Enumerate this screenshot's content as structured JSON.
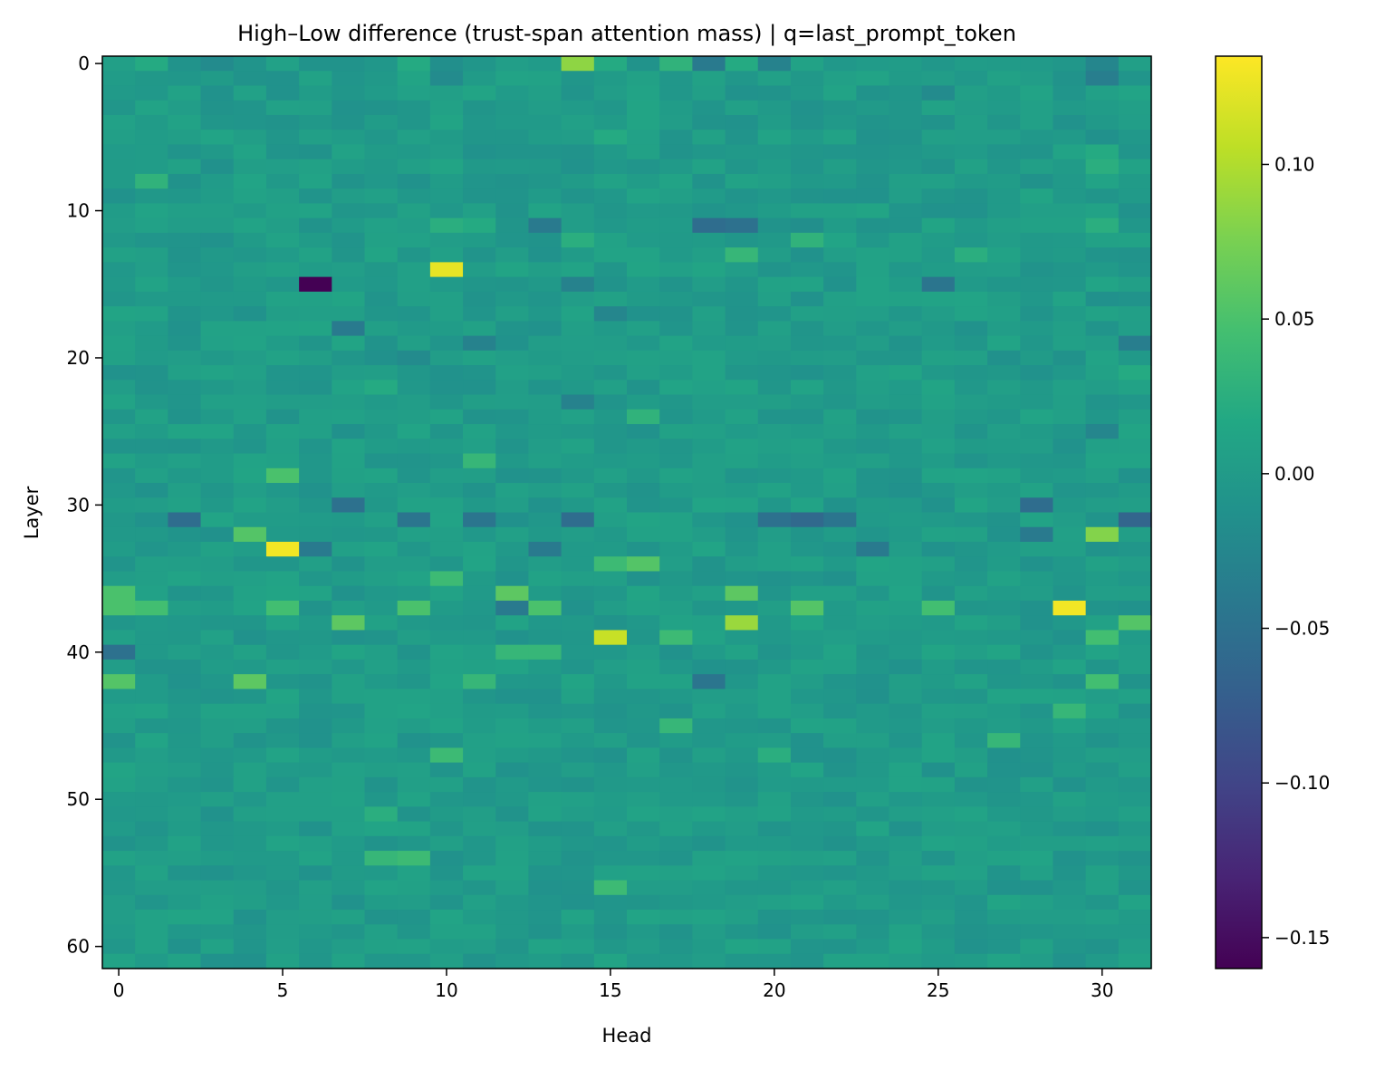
{
  "chart_data": {
    "type": "heatmap",
    "title": "High–Low difference (trust-span attention mass) | q=last_prompt_token",
    "xlabel": "Head",
    "ylabel": "Layer",
    "x_ticks": [
      0,
      5,
      10,
      15,
      20,
      25,
      30
    ],
    "y_ticks": [
      0,
      10,
      20,
      30,
      40,
      50,
      60
    ],
    "x_tick_labels": [
      "0",
      "5",
      "10",
      "15",
      "20",
      "25",
      "30"
    ],
    "y_tick_labels": [
      "0",
      "10",
      "20",
      "30",
      "40",
      "50",
      "60"
    ],
    "n_heads": 32,
    "n_layers": 62,
    "colormap": "viridis",
    "vmin": -0.16,
    "vmax": 0.135,
    "colorbar_ticks": [
      0.1,
      0.05,
      0.0,
      -0.05,
      -0.1,
      -0.15
    ],
    "colorbar_tick_labels": [
      "0.10",
      "0.05",
      "0.00",
      "−0.05",
      "−0.10",
      "−0.15"
    ],
    "baseline_value": 0.0,
    "cells": [
      {
        "layer": 0,
        "head": 1,
        "value": 0.02
      },
      {
        "layer": 0,
        "head": 2,
        "value": -0.01
      },
      {
        "layer": 0,
        "head": 3,
        "value": -0.02
      },
      {
        "layer": 0,
        "head": 7,
        "value": -0.01
      },
      {
        "layer": 0,
        "head": 9,
        "value": 0.02
      },
      {
        "layer": 0,
        "head": 10,
        "value": -0.015
      },
      {
        "layer": 0,
        "head": 14,
        "value": 0.085
      },
      {
        "layer": 0,
        "head": 15,
        "value": 0.02
      },
      {
        "layer": 0,
        "head": 16,
        "value": -0.01
      },
      {
        "layer": 0,
        "head": 17,
        "value": 0.03
      },
      {
        "layer": 0,
        "head": 18,
        "value": -0.04
      },
      {
        "layer": 0,
        "head": 19,
        "value": 0.02
      },
      {
        "layer": 0,
        "head": 20,
        "value": -0.03
      },
      {
        "layer": 0,
        "head": 30,
        "value": -0.025
      },
      {
        "layer": 1,
        "head": 30,
        "value": -0.035
      },
      {
        "layer": 1,
        "head": 10,
        "value": -0.02
      },
      {
        "layer": 2,
        "head": 25,
        "value": -0.02
      },
      {
        "layer": 5,
        "head": 15,
        "value": 0.02
      },
      {
        "layer": 6,
        "head": 30,
        "value": 0.02
      },
      {
        "layer": 7,
        "head": 30,
        "value": 0.025
      },
      {
        "layer": 8,
        "head": 1,
        "value": 0.03
      },
      {
        "layer": 11,
        "head": 10,
        "value": 0.025
      },
      {
        "layer": 11,
        "head": 11,
        "value": 0.02
      },
      {
        "layer": 11,
        "head": 13,
        "value": -0.04
      },
      {
        "layer": 11,
        "head": 18,
        "value": -0.055
      },
      {
        "layer": 11,
        "head": 19,
        "value": -0.05
      },
      {
        "layer": 11,
        "head": 21,
        "value": -0.015
      },
      {
        "layer": 11,
        "head": 30,
        "value": 0.025
      },
      {
        "layer": 12,
        "head": 21,
        "value": 0.03
      },
      {
        "layer": 12,
        "head": 14,
        "value": 0.025
      },
      {
        "layer": 13,
        "head": 19,
        "value": 0.035
      },
      {
        "layer": 13,
        "head": 26,
        "value": 0.025
      },
      {
        "layer": 14,
        "head": 10,
        "value": 0.125
      },
      {
        "layer": 15,
        "head": 6,
        "value": -0.16
      },
      {
        "layer": 15,
        "head": 25,
        "value": -0.045
      },
      {
        "layer": 15,
        "head": 14,
        "value": -0.03
      },
      {
        "layer": 17,
        "head": 15,
        "value": -0.025
      },
      {
        "layer": 18,
        "head": 7,
        "value": -0.04
      },
      {
        "layer": 19,
        "head": 11,
        "value": -0.03
      },
      {
        "layer": 19,
        "head": 31,
        "value": -0.035
      },
      {
        "layer": 20,
        "head": 9,
        "value": -0.02
      },
      {
        "layer": 21,
        "head": 31,
        "value": 0.02
      },
      {
        "layer": 22,
        "head": 8,
        "value": 0.02
      },
      {
        "layer": 23,
        "head": 14,
        "value": -0.03
      },
      {
        "layer": 24,
        "head": 16,
        "value": 0.03
      },
      {
        "layer": 25,
        "head": 30,
        "value": -0.025
      },
      {
        "layer": 27,
        "head": 11,
        "value": 0.035
      },
      {
        "layer": 28,
        "head": 5,
        "value": 0.05
      },
      {
        "layer": 30,
        "head": 7,
        "value": -0.05
      },
      {
        "layer": 30,
        "head": 28,
        "value": -0.055
      },
      {
        "layer": 31,
        "head": 2,
        "value": -0.055
      },
      {
        "layer": 31,
        "head": 9,
        "value": -0.045
      },
      {
        "layer": 31,
        "head": 11,
        "value": -0.045
      },
      {
        "layer": 31,
        "head": 14,
        "value": -0.055
      },
      {
        "layer": 31,
        "head": 20,
        "value": -0.05
      },
      {
        "layer": 31,
        "head": 21,
        "value": -0.06
      },
      {
        "layer": 31,
        "head": 22,
        "value": -0.045
      },
      {
        "layer": 31,
        "head": 31,
        "value": -0.065
      },
      {
        "layer": 32,
        "head": 4,
        "value": 0.055
      },
      {
        "layer": 32,
        "head": 30,
        "value": 0.08
      },
      {
        "layer": 32,
        "head": 28,
        "value": -0.04
      },
      {
        "layer": 33,
        "head": 5,
        "value": 0.13
      },
      {
        "layer": 33,
        "head": 6,
        "value": -0.04
      },
      {
        "layer": 33,
        "head": 13,
        "value": -0.04
      },
      {
        "layer": 33,
        "head": 23,
        "value": -0.04
      },
      {
        "layer": 34,
        "head": 15,
        "value": 0.04
      },
      {
        "layer": 34,
        "head": 16,
        "value": 0.055
      },
      {
        "layer": 35,
        "head": 10,
        "value": 0.04
      },
      {
        "layer": 36,
        "head": 0,
        "value": 0.05
      },
      {
        "layer": 36,
        "head": 12,
        "value": 0.06
      },
      {
        "layer": 36,
        "head": 19,
        "value": 0.06
      },
      {
        "layer": 37,
        "head": 0,
        "value": 0.05
      },
      {
        "layer": 37,
        "head": 1,
        "value": 0.045
      },
      {
        "layer": 37,
        "head": 5,
        "value": 0.045
      },
      {
        "layer": 37,
        "head": 9,
        "value": 0.05
      },
      {
        "layer": 37,
        "head": 12,
        "value": -0.04
      },
      {
        "layer": 37,
        "head": 13,
        "value": 0.05
      },
      {
        "layer": 37,
        "head": 21,
        "value": 0.055
      },
      {
        "layer": 37,
        "head": 29,
        "value": 0.13
      },
      {
        "layer": 37,
        "head": 25,
        "value": 0.045
      },
      {
        "layer": 38,
        "head": 7,
        "value": 0.06
      },
      {
        "layer": 38,
        "head": 19,
        "value": 0.09
      },
      {
        "layer": 38,
        "head": 31,
        "value": 0.055
      },
      {
        "layer": 39,
        "head": 15,
        "value": 0.11
      },
      {
        "layer": 39,
        "head": 17,
        "value": 0.04
      },
      {
        "layer": 39,
        "head": 30,
        "value": 0.045
      },
      {
        "layer": 40,
        "head": 0,
        "value": -0.05
      },
      {
        "layer": 40,
        "head": 12,
        "value": 0.035
      },
      {
        "layer": 40,
        "head": 13,
        "value": 0.035
      },
      {
        "layer": 42,
        "head": 0,
        "value": 0.055
      },
      {
        "layer": 42,
        "head": 4,
        "value": 0.06
      },
      {
        "layer": 42,
        "head": 11,
        "value": 0.035
      },
      {
        "layer": 42,
        "head": 18,
        "value": -0.045
      },
      {
        "layer": 42,
        "head": 30,
        "value": 0.045
      },
      {
        "layer": 44,
        "head": 29,
        "value": 0.035
      },
      {
        "layer": 45,
        "head": 17,
        "value": 0.035
      },
      {
        "layer": 46,
        "head": 27,
        "value": 0.035
      },
      {
        "layer": 47,
        "head": 10,
        "value": 0.04
      },
      {
        "layer": 47,
        "head": 20,
        "value": 0.025
      },
      {
        "layer": 51,
        "head": 8,
        "value": 0.025
      },
      {
        "layer": 54,
        "head": 8,
        "value": 0.035
      },
      {
        "layer": 54,
        "head": 9,
        "value": 0.04
      },
      {
        "layer": 56,
        "head": 15,
        "value": 0.04
      }
    ]
  }
}
